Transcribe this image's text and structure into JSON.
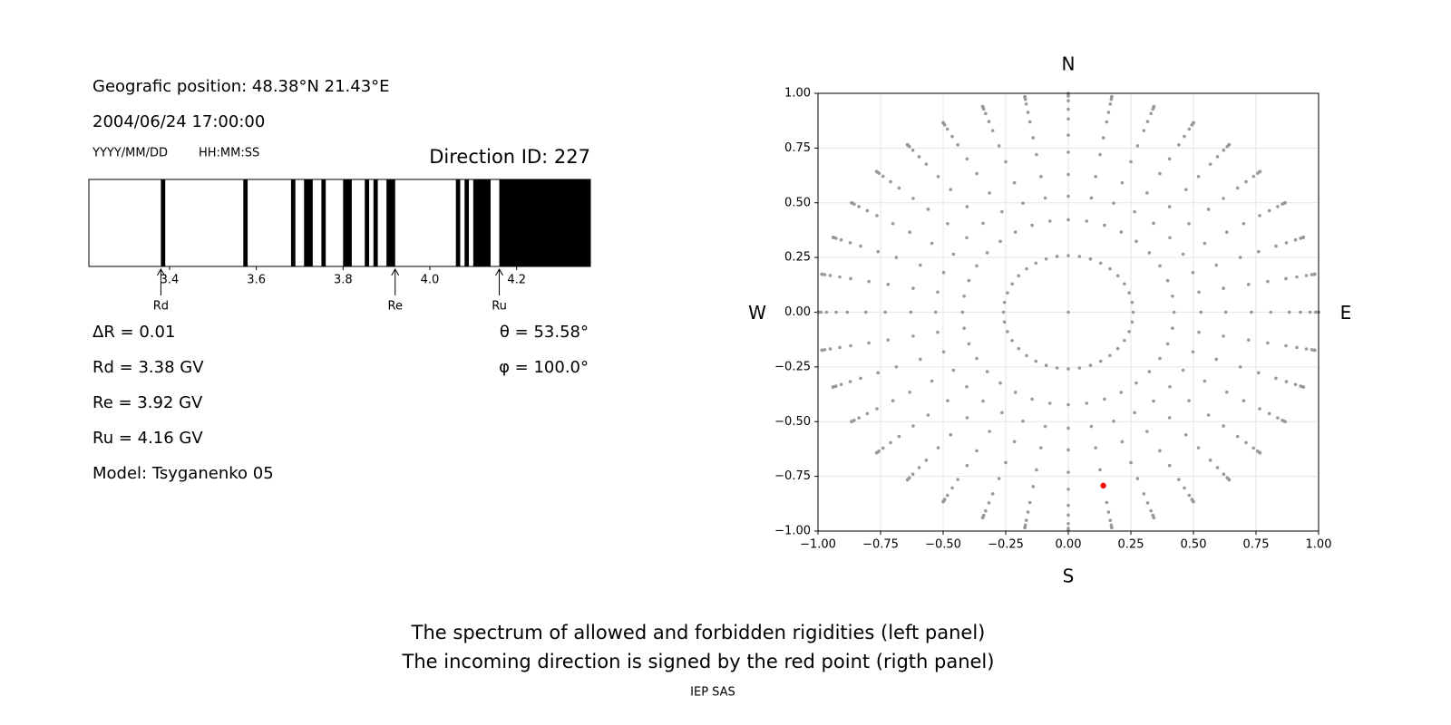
{
  "info": {
    "position": "Geografic position: 48.38°N 21.43°E",
    "datetime": "2004/06/24 17:00:00",
    "date_format": "YYYY/MM/DD",
    "time_format": "HH:MM:SS",
    "direction": "Direction ID: 227"
  },
  "chart_data": [
    {
      "type": "spectrum",
      "xlim": [
        3.214,
        4.37
      ],
      "xticks": [
        3.4,
        3.6,
        3.8,
        {
          "value": 4,
          "label": "4.0"
        },
        4.2
      ],
      "color": "#000000",
      "bands": [
        [
          3.38,
          3.39
        ],
        [
          3.57,
          3.58
        ],
        [
          3.68,
          3.69
        ],
        [
          3.71,
          3.73
        ],
        [
          3.75,
          3.76
        ],
        [
          3.8,
          3.82
        ],
        [
          3.85,
          3.86
        ],
        [
          3.87,
          3.88
        ],
        [
          3.9,
          3.92
        ],
        [
          4.06,
          4.07
        ],
        [
          4.08,
          4.09
        ],
        [
          4.1,
          4.14
        ],
        [
          4.16,
          4.37
        ]
      ],
      "markers": [
        {
          "name": "Rd",
          "value": 3.38
        },
        {
          "name": "Re",
          "value": 3.92
        },
        {
          "name": "Ru",
          "value": 4.16
        }
      ]
    },
    {
      "type": "scatter",
      "xlim": [
        -1,
        1
      ],
      "ylim": [
        -1,
        1
      ],
      "xticks": [
        {
          "value": -1,
          "label": "−1.00"
        },
        {
          "value": -0.75,
          "label": "−0.75"
        },
        {
          "value": -0.5,
          "label": "−0.50"
        },
        {
          "value": -0.25,
          "label": "−0.25"
        },
        {
          "value": 0,
          "label": "0.00"
        },
        {
          "value": 0.25,
          "label": "0.25"
        },
        {
          "value": 0.5,
          "label": "0.50"
        },
        {
          "value": 0.75,
          "label": "0.75"
        },
        {
          "value": 1,
          "label": "1.00"
        }
      ],
      "yticks": [
        {
          "value": -1,
          "label": "−1.00"
        },
        {
          "value": -0.75,
          "label": "−0.75"
        },
        {
          "value": -0.5,
          "label": "−0.50"
        },
        {
          "value": -0.25,
          "label": "−0.25"
        },
        {
          "value": 0,
          "label": "0.00"
        },
        {
          "value": 0.25,
          "label": "0.25"
        },
        {
          "value": 0.5,
          "label": "0.50"
        },
        {
          "value": 0.75,
          "label": "0.75"
        },
        {
          "value": 1,
          "label": "1.00"
        }
      ],
      "grid": true,
      "labels": {
        "north": "N",
        "south": "S",
        "west": "W",
        "east": "E"
      },
      "grid_points": {
        "color": "#999999",
        "zenith": [
          0,
          15,
          25,
          32,
          39,
          47,
          54,
          62,
          68,
          75,
          81,
          85,
          88,
          90
        ],
        "azimuth": [
          0,
          10,
          20,
          30,
          40,
          50,
          60,
          70,
          80,
          90,
          100,
          110,
          120,
          130,
          140,
          150,
          160,
          170,
          180,
          190,
          200,
          210,
          220,
          230,
          240,
          250,
          260,
          270,
          280,
          290,
          300,
          310,
          320,
          330,
          340,
          350
        ]
      },
      "point": {
        "color": "#ff0000",
        "theta": 53.58,
        "phi": 100.0
      }
    }
  ],
  "results": {
    "left": [
      "ΔR = 0.01",
      "Rd = 3.38 GV",
      "Re = 3.92 GV",
      "Ru = 4.16 GV",
      "Model: Tsyganenko 05"
    ],
    "right": [
      "θ = 53.58°",
      "φ = 100.0°"
    ]
  },
  "footer": {
    "lines": [
      "The spectrum of allowed and forbidden rigidities (left panel)",
      "The incoming direction is signed by the red point (rigth panel)"
    ],
    "credit": "IEP SAS"
  }
}
